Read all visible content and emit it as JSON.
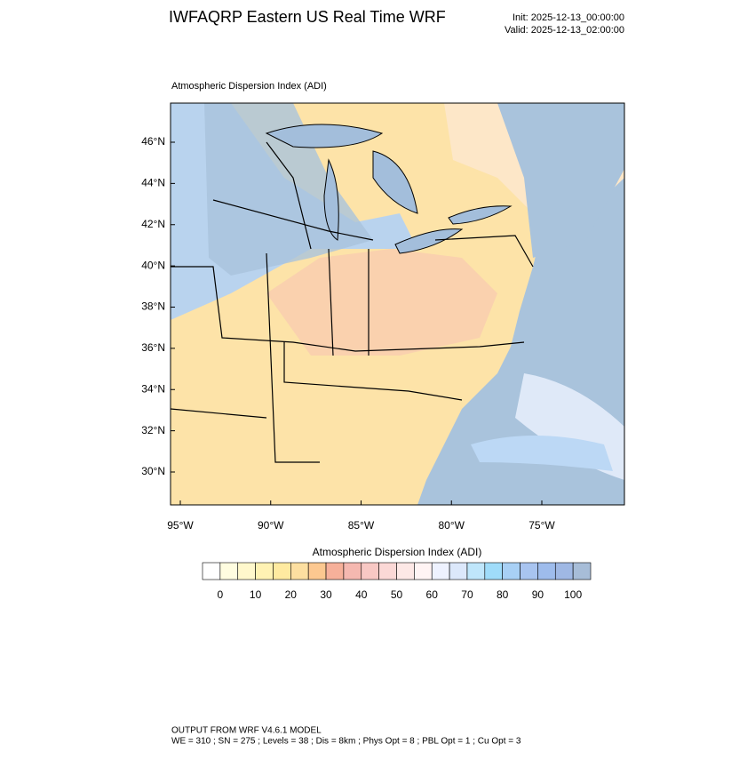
{
  "header": {
    "title": "IWFAQRP Eastern US Real Time WRF",
    "init": "Init: 2025-12-13_00:00:00",
    "valid": "Valid: 2025-12-13_02:00:00"
  },
  "map": {
    "subtitle": "Atmospheric Dispersion Index   (ADI)",
    "lat_ticks": [
      {
        "value": 46,
        "label": "46°N"
      },
      {
        "value": 44,
        "label": "44°N"
      },
      {
        "value": 42,
        "label": "42°N"
      },
      {
        "value": 40,
        "label": "40°N"
      },
      {
        "value": 38,
        "label": "38°N"
      },
      {
        "value": 36,
        "label": "36°N"
      },
      {
        "value": 34,
        "label": "34°N"
      },
      {
        "value": 32,
        "label": "32°N"
      },
      {
        "value": 30,
        "label": "30°N"
      }
    ],
    "lon_ticks": [
      {
        "value": -95,
        "label": "95°W"
      },
      {
        "value": -90,
        "label": "90°W"
      },
      {
        "value": -85,
        "label": "85°W"
      },
      {
        "value": -80,
        "label": "80°W"
      },
      {
        "value": -75,
        "label": "75°W"
      }
    ]
  },
  "colorbar": {
    "title": "Atmospheric Dispersion Index  (ADI)",
    "ticks": [
      0,
      10,
      20,
      30,
      40,
      50,
      60,
      70,
      80,
      90,
      100
    ],
    "colors": [
      "#ffffff",
      "#fffde0",
      "#fff8cc",
      "#fff2b3",
      "#ffeaa0",
      "#fddfa0",
      "#fcc890",
      "#f6b09a",
      "#f5b8b0",
      "#f8c8c4",
      "#fbd8d6",
      "#fde8e6",
      "#fff4f4",
      "#eef2ff",
      "#dce8fb",
      "#bfe6fb",
      "#9fdcfa",
      "#a8d0f5",
      "#a8c4f0",
      "#9ebcec",
      "#9fb8e4",
      "#a7bdd8"
    ]
  },
  "footer": {
    "line1": "OUTPUT FROM WRF V4.6.1 MODEL",
    "line2": "WE = 310 ; SN = 275 ; Levels = 38 ; Dis = 8km ; Phys Opt = 8 ; PBL Opt = 1 ; Cu Opt = 3"
  }
}
